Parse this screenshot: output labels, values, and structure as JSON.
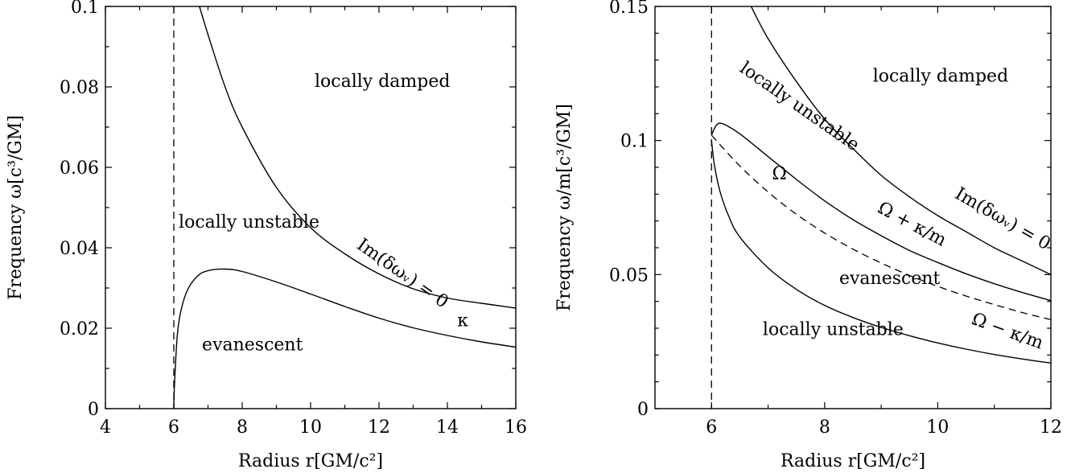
{
  "chart_data": [
    {
      "type": "line",
      "xlabel": "Radius r[GM/c²]",
      "ylabel": "Frequency ω[c³/GM]",
      "xlim": [
        4,
        16
      ],
      "ylim": [
        0,
        0.1
      ],
      "xticks": [
        4,
        6,
        8,
        10,
        12,
        14,
        16
      ],
      "xtick_labels": [
        "4",
        "6",
        "8",
        "10",
        "12",
        "14",
        "16"
      ],
      "yticks": [
        0,
        0.02,
        0.04,
        0.06,
        0.08,
        0.1
      ],
      "ytick_labels": [
        "0",
        "0.02",
        "0.04",
        "0.06",
        "0.08",
        "0.1"
      ],
      "vline_x": 6,
      "series": [
        {
          "name": "Im(δωᵥ) = 0",
          "style": "solid",
          "x": [
            6.75,
            7.0,
            7.5,
            8.0,
            9.0,
            10.0,
            11.0,
            12.0,
            13.0,
            14.0,
            15.0,
            16.0
          ],
          "y": [
            0.1,
            0.093,
            0.08,
            0.07,
            0.055,
            0.045,
            0.0385,
            0.0335,
            0.0298,
            0.0275,
            0.0262,
            0.025
          ]
        },
        {
          "name": "κ",
          "style": "solid",
          "x": [
            6.0,
            6.02,
            6.1,
            6.2,
            6.4,
            6.7,
            7.0,
            7.5,
            8.0,
            9.0,
            10.0,
            11.0,
            12.0,
            13.0,
            14.0,
            15.0,
            16.0
          ],
          "y": [
            0.0,
            0.006,
            0.018,
            0.024,
            0.0295,
            0.033,
            0.0343,
            0.0347,
            0.0341,
            0.0315,
            0.0285,
            0.0254,
            0.0225,
            0.0201,
            0.0182,
            0.0166,
            0.0153
          ]
        }
      ],
      "annotations": [
        {
          "text": "locally damped",
          "x": 12.1,
          "y": 0.08
        },
        {
          "text": "locally unstable",
          "x": 8.2,
          "y": 0.045
        },
        {
          "text": "evanescent",
          "x": 8.3,
          "y": 0.0145
        },
        {
          "text": "Im(δωᵥ) = 0",
          "x": 12.6,
          "y": 0.0325,
          "rotate": 35
        },
        {
          "text": "κ",
          "x": 14.45,
          "y": 0.0205
        }
      ]
    },
    {
      "type": "line",
      "xlabel": "Radius r[GM/c²]",
      "ylabel": "Frequency ω/m[c³/GM]",
      "xlim": [
        5,
        12
      ],
      "ylim": [
        0,
        0.15
      ],
      "xticks": [
        6,
        8,
        10,
        12
      ],
      "xtick_labels": [
        "6",
        "8",
        "10",
        "12"
      ],
      "yticks": [
        0,
        0.05,
        0.1,
        0.15
      ],
      "ytick_labels": [
        "0",
        "0.05",
        "0.1",
        "0.15"
      ],
      "vline_x": 6,
      "series": [
        {
          "name": "Im(δωᵥ) = 0",
          "style": "solid",
          "x": [
            6.7,
            7.0,
            7.5,
            8.0,
            8.5,
            9.0,
            9.5,
            10.0,
            10.5,
            11.0,
            11.5,
            12.0
          ],
          "y": [
            0.15,
            0.138,
            0.122,
            0.108,
            0.097,
            0.087,
            0.079,
            0.072,
            0.066,
            0.06,
            0.055,
            0.05
          ]
        },
        {
          "name": "Ω + κ/m",
          "style": "solid",
          "x": [
            6.0,
            6.05,
            6.1,
            6.15,
            6.25,
            6.5,
            7.0,
            7.5,
            8.0,
            8.5,
            9.0,
            9.5,
            10.0,
            10.5,
            11.0,
            11.5,
            12.0
          ],
          "y": [
            0.102,
            0.1045,
            0.106,
            0.1065,
            0.1058,
            0.1025,
            0.094,
            0.0855,
            0.0775,
            0.0705,
            0.0645,
            0.059,
            0.0545,
            0.0503,
            0.0466,
            0.0433,
            0.0403
          ]
        },
        {
          "name": "Ω",
          "style": "dashed",
          "x": [
            6.0,
            6.5,
            7.0,
            7.5,
            8.0,
            8.5,
            9.0,
            9.5,
            10.0,
            10.5,
            11.0,
            11.5,
            12.0
          ],
          "y": [
            0.102,
            0.0905,
            0.0808,
            0.0725,
            0.0655,
            0.0595,
            0.0543,
            0.0497,
            0.0456,
            0.042,
            0.0388,
            0.0358,
            0.0332
          ]
        },
        {
          "name": "Ω − κ/m",
          "style": "solid",
          "x": [
            6.0,
            6.05,
            6.15,
            6.3,
            6.5,
            7.0,
            7.5,
            8.0,
            8.5,
            9.0,
            9.5,
            10.0,
            10.5,
            11.0,
            11.5,
            12.0
          ],
          "y": [
            0.1,
            0.091,
            0.081,
            0.072,
            0.064,
            0.0525,
            0.0445,
            0.0385,
            0.034,
            0.0303,
            0.0272,
            0.0245,
            0.0222,
            0.0202,
            0.0185,
            0.017
          ]
        }
      ],
      "annotations": [
        {
          "text": "locally damped",
          "x": 10.05,
          "y": 0.122
        },
        {
          "text": "locally unstable",
          "x": 7.5,
          "y": 0.111,
          "rotate": 35
        },
        {
          "text": "Ω",
          "x": 7.2,
          "y": 0.0855
        },
        {
          "text": "Im(δωᵥ) = 0",
          "x": 11.1,
          "y": 0.069,
          "rotate": 30
        },
        {
          "text": "Ω + κ/m",
          "x": 9.5,
          "y": 0.067,
          "rotate": 28
        },
        {
          "text": "evanescent",
          "x": 9.15,
          "y": 0.0465
        },
        {
          "text": "Ω − κ/m",
          "x": 11.2,
          "y": 0.027,
          "rotate": 20
        },
        {
          "text": "locally unstable",
          "x": 8.15,
          "y": 0.0275
        }
      ]
    }
  ]
}
